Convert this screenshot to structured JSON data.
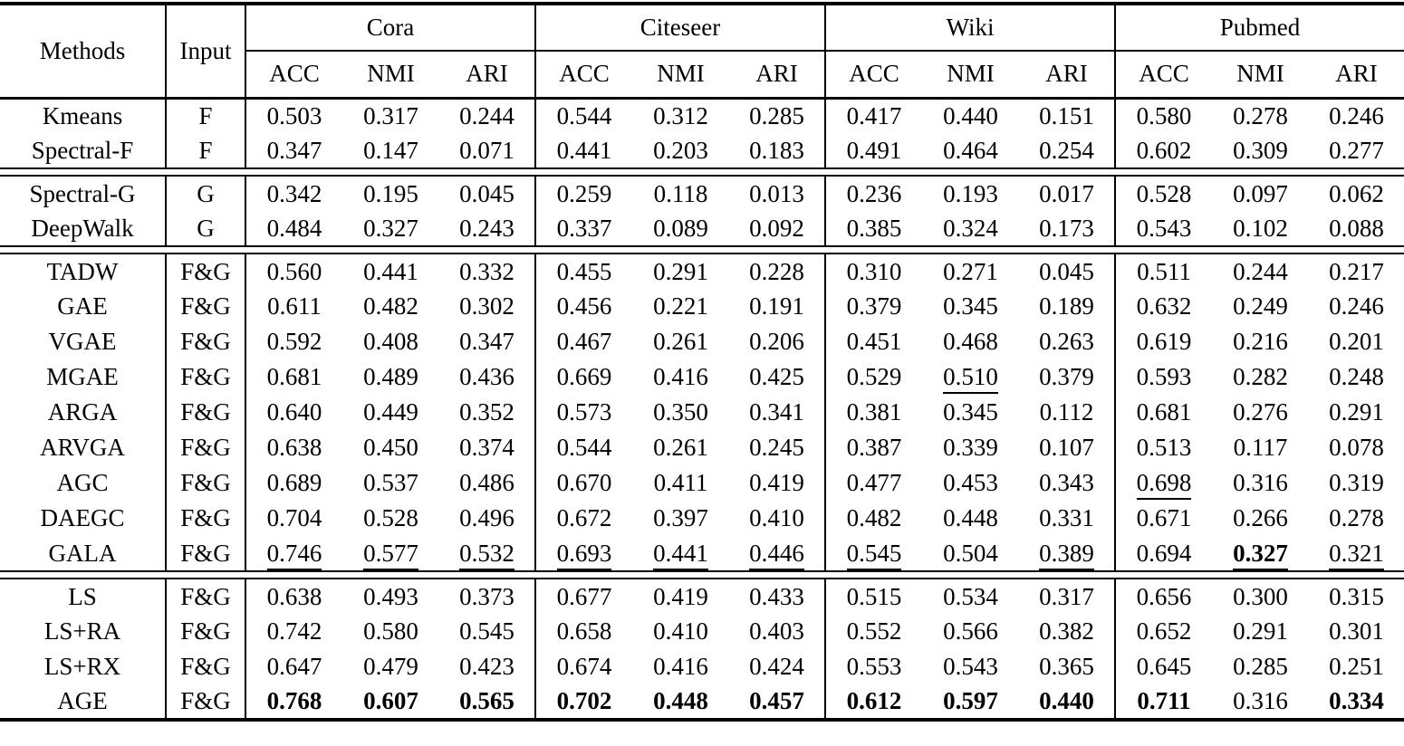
{
  "table": {
    "header": {
      "methods": "Methods",
      "input": "Input",
      "groups": [
        "Cora",
        "Citeseer",
        "Wiki",
        "Pubmed"
      ],
      "metrics": [
        "ACC",
        "NMI",
        "ARI"
      ]
    },
    "row_groups": [
      {
        "rows": [
          {
            "method": "Kmeans",
            "input": "F",
            "values": [
              "0.503",
              "0.317",
              "0.244",
              "0.544",
              "0.312",
              "0.285",
              "0.417",
              "0.440",
              "0.151",
              "0.580",
              "0.278",
              "0.246"
            ]
          },
          {
            "method": "Spectral-F",
            "input": "F",
            "values": [
              "0.347",
              "0.147",
              "0.071",
              "0.441",
              "0.203",
              "0.183",
              "0.491",
              "0.464",
              "0.254",
              "0.602",
              "0.309",
              "0.277"
            ]
          }
        ]
      },
      {
        "rows": [
          {
            "method": "Spectral-G",
            "input": "G",
            "values": [
              "0.342",
              "0.195",
              "0.045",
              "0.259",
              "0.118",
              "0.013",
              "0.236",
              "0.193",
              "0.017",
              "0.528",
              "0.097",
              "0.062"
            ]
          },
          {
            "method": "DeepWalk",
            "input": "G",
            "values": [
              "0.484",
              "0.327",
              "0.243",
              "0.337",
              "0.089",
              "0.092",
              "0.385",
              "0.324",
              "0.173",
              "0.543",
              "0.102",
              "0.088"
            ]
          }
        ]
      },
      {
        "rows": [
          {
            "method": "TADW",
            "input": "F&G",
            "values": [
              "0.560",
              "0.441",
              "0.332",
              "0.455",
              "0.291",
              "0.228",
              "0.310",
              "0.271",
              "0.045",
              "0.511",
              "0.244",
              "0.217"
            ]
          },
          {
            "method": "GAE",
            "input": "F&G",
            "values": [
              "0.611",
              "0.482",
              "0.302",
              "0.456",
              "0.221",
              "0.191",
              "0.379",
              "0.345",
              "0.189",
              "0.632",
              "0.249",
              "0.246"
            ]
          },
          {
            "method": "VGAE",
            "input": "F&G",
            "values": [
              "0.592",
              "0.408",
              "0.347",
              "0.467",
              "0.261",
              "0.206",
              "0.451",
              "0.468",
              "0.263",
              "0.619",
              "0.216",
              "0.201"
            ]
          },
          {
            "method": "MGAE",
            "input": "F&G",
            "values": [
              "0.681",
              "0.489",
              "0.436",
              "0.669",
              "0.416",
              "0.425",
              "0.529",
              "0.510",
              "0.379",
              "0.593",
              "0.282",
              "0.248"
            ],
            "flags": [
              "",
              "",
              "",
              "",
              "",
              "",
              "",
              "u",
              "",
              "",
              "",
              ""
            ]
          },
          {
            "method": "ARGA",
            "input": "F&G",
            "values": [
              "0.640",
              "0.449",
              "0.352",
              "0.573",
              "0.350",
              "0.341",
              "0.381",
              "0.345",
              "0.112",
              "0.681",
              "0.276",
              "0.291"
            ]
          },
          {
            "method": "ARVGA",
            "input": "F&G",
            "values": [
              "0.638",
              "0.450",
              "0.374",
              "0.544",
              "0.261",
              "0.245",
              "0.387",
              "0.339",
              "0.107",
              "0.513",
              "0.117",
              "0.078"
            ]
          },
          {
            "method": "AGC",
            "input": "F&G",
            "values": [
              "0.689",
              "0.537",
              "0.486",
              "0.670",
              "0.411",
              "0.419",
              "0.477",
              "0.453",
              "0.343",
              "0.698",
              "0.316",
              "0.319"
            ],
            "flags": [
              "",
              "",
              "",
              "",
              "",
              "",
              "",
              "",
              "",
              "u",
              "",
              ""
            ]
          },
          {
            "method": "DAEGC",
            "input": "F&G",
            "values": [
              "0.704",
              "0.528",
              "0.496",
              "0.672",
              "0.397",
              "0.410",
              "0.482",
              "0.448",
              "0.331",
              "0.671",
              "0.266",
              "0.278"
            ]
          },
          {
            "method": "GALA",
            "input": "F&G",
            "values": [
              "0.746",
              "0.577",
              "0.532",
              "0.693",
              "0.441",
              "0.446",
              "0.545",
              "0.504",
              "0.389",
              "0.694",
              "0.327",
              "0.321"
            ],
            "flags": [
              "u",
              "u",
              "u",
              "u",
              "u",
              "u",
              "u",
              "",
              "u",
              "",
              "bu",
              "u"
            ]
          }
        ]
      },
      {
        "rows": [
          {
            "method": "LS",
            "input": "F&G",
            "values": [
              "0.638",
              "0.493",
              "0.373",
              "0.677",
              "0.419",
              "0.433",
              "0.515",
              "0.534",
              "0.317",
              "0.656",
              "0.300",
              "0.315"
            ]
          },
          {
            "method": "LS+RA",
            "input": "F&G",
            "values": [
              "0.742",
              "0.580",
              "0.545",
              "0.658",
              "0.410",
              "0.403",
              "0.552",
              "0.566",
              "0.382",
              "0.652",
              "0.291",
              "0.301"
            ]
          },
          {
            "method": "LS+RX",
            "input": "F&G",
            "values": [
              "0.647",
              "0.479",
              "0.423",
              "0.674",
              "0.416",
              "0.424",
              "0.553",
              "0.543",
              "0.365",
              "0.645",
              "0.285",
              "0.251"
            ]
          },
          {
            "method": "AGE",
            "input": "F&G",
            "values": [
              "0.768",
              "0.607",
              "0.565",
              "0.702",
              "0.448",
              "0.457",
              "0.612",
              "0.597",
              "0.440",
              "0.711",
              "0.316",
              "0.334"
            ],
            "flags": [
              "b",
              "b",
              "b",
              "b",
              "b",
              "b",
              "b",
              "b",
              "b",
              "b",
              "",
              "b"
            ]
          }
        ]
      }
    ]
  }
}
